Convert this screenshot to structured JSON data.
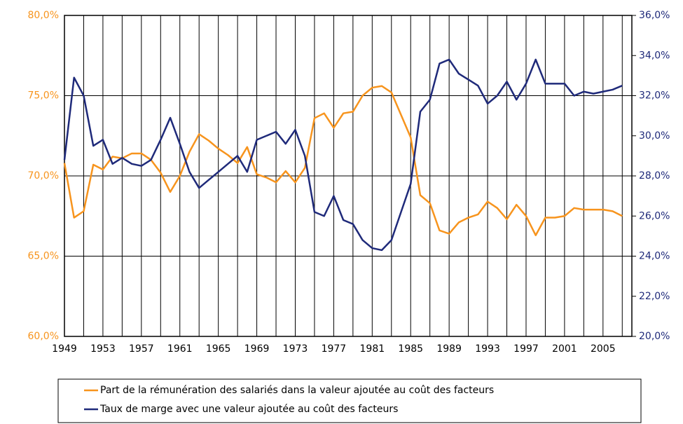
{
  "chart_data": {
    "type": "line",
    "x": [
      1949,
      1950,
      1951,
      1952,
      1953,
      1954,
      1955,
      1956,
      1957,
      1958,
      1959,
      1960,
      1961,
      1962,
      1963,
      1964,
      1965,
      1966,
      1967,
      1968,
      1969,
      1970,
      1971,
      1972,
      1973,
      1974,
      1975,
      1976,
      1977,
      1978,
      1979,
      1980,
      1981,
      1982,
      1983,
      1984,
      1985,
      1986,
      1987,
      1988,
      1989,
      1990,
      1991,
      1992,
      1993,
      1994,
      1995,
      1996,
      1997,
      1998,
      1999,
      2000,
      2001,
      2002,
      2003,
      2004,
      2005,
      2006,
      2007
    ],
    "series": [
      {
        "name": "Part de la rémunération des salariés dans la valeur ajoutée au coût des facteurs",
        "color": "#f7941d",
        "axis": "y",
        "values": [
          70.8,
          67.4,
          67.8,
          70.7,
          70.4,
          71.2,
          71.1,
          71.4,
          71.4,
          71.0,
          70.2,
          69.0,
          70.0,
          71.5,
          72.6,
          72.2,
          71.7,
          71.3,
          70.8,
          71.8,
          70.1,
          69.9,
          69.6,
          70.3,
          69.6,
          70.5,
          73.6,
          73.9,
          73.0,
          73.9,
          74.0,
          75.0,
          75.5,
          75.6,
          75.2,
          73.8,
          72.4,
          68.8,
          68.3,
          66.6,
          66.4,
          67.1,
          67.4,
          67.6,
          68.4,
          68.0,
          67.3,
          68.2,
          67.5,
          66.3,
          67.4,
          67.4,
          67.5,
          68.0,
          67.9,
          67.9,
          67.9,
          67.8,
          67.5
        ]
      },
      {
        "name": "Taux de marge avec une valeur ajoutée au coût des facteurs",
        "color": "#1f2a7a",
        "axis": "y2",
        "values": [
          28.8,
          32.9,
          32.0,
          29.5,
          29.8,
          28.6,
          28.9,
          28.6,
          28.5,
          28.8,
          29.8,
          30.9,
          29.6,
          28.2,
          27.4,
          27.8,
          28.2,
          28.6,
          29.0,
          28.2,
          29.8,
          30.0,
          30.2,
          29.6,
          30.3,
          29.0,
          26.2,
          26.0,
          27.0,
          25.8,
          25.6,
          24.8,
          24.4,
          24.3,
          24.8,
          26.2,
          27.6,
          31.2,
          31.8,
          33.6,
          33.8,
          33.1,
          32.8,
          32.5,
          31.6,
          32.0,
          32.7,
          31.8,
          32.6,
          33.8,
          32.6,
          32.6,
          32.6,
          32.0,
          32.2,
          32.1,
          32.2,
          32.3,
          32.5
        ]
      }
    ],
    "xlim": [
      1949,
      2008
    ],
    "xticks": [
      1949,
      1953,
      1957,
      1961,
      1965,
      1969,
      1973,
      1977,
      1981,
      1985,
      1989,
      1993,
      1997,
      2001,
      2005
    ],
    "ylim": [
      60,
      80
    ],
    "yticks": [
      {
        "value": 60,
        "label": "60,0%"
      },
      {
        "value": 65,
        "label": "65,0%"
      },
      {
        "value": 70,
        "label": "70,0%"
      },
      {
        "value": 75,
        "label": "75,0%"
      },
      {
        "value": 80,
        "label": "80,0%"
      }
    ],
    "y2lim": [
      20,
      36
    ],
    "y2ticks": [
      {
        "value": 20,
        "label": "20,0%"
      },
      {
        "value": 22,
        "label": "22,0%"
      },
      {
        "value": 24,
        "label": "24,0%"
      },
      {
        "value": 26,
        "label": "26,0%"
      },
      {
        "value": 28,
        "label": "28,0%"
      },
      {
        "value": 30,
        "label": "30,0%"
      },
      {
        "value": 32,
        "label": "32,0%"
      },
      {
        "value": 34,
        "label": "34,0%"
      },
      {
        "value": 36,
        "label": "36,0%"
      }
    ],
    "grid": true,
    "legend": "bottom"
  }
}
